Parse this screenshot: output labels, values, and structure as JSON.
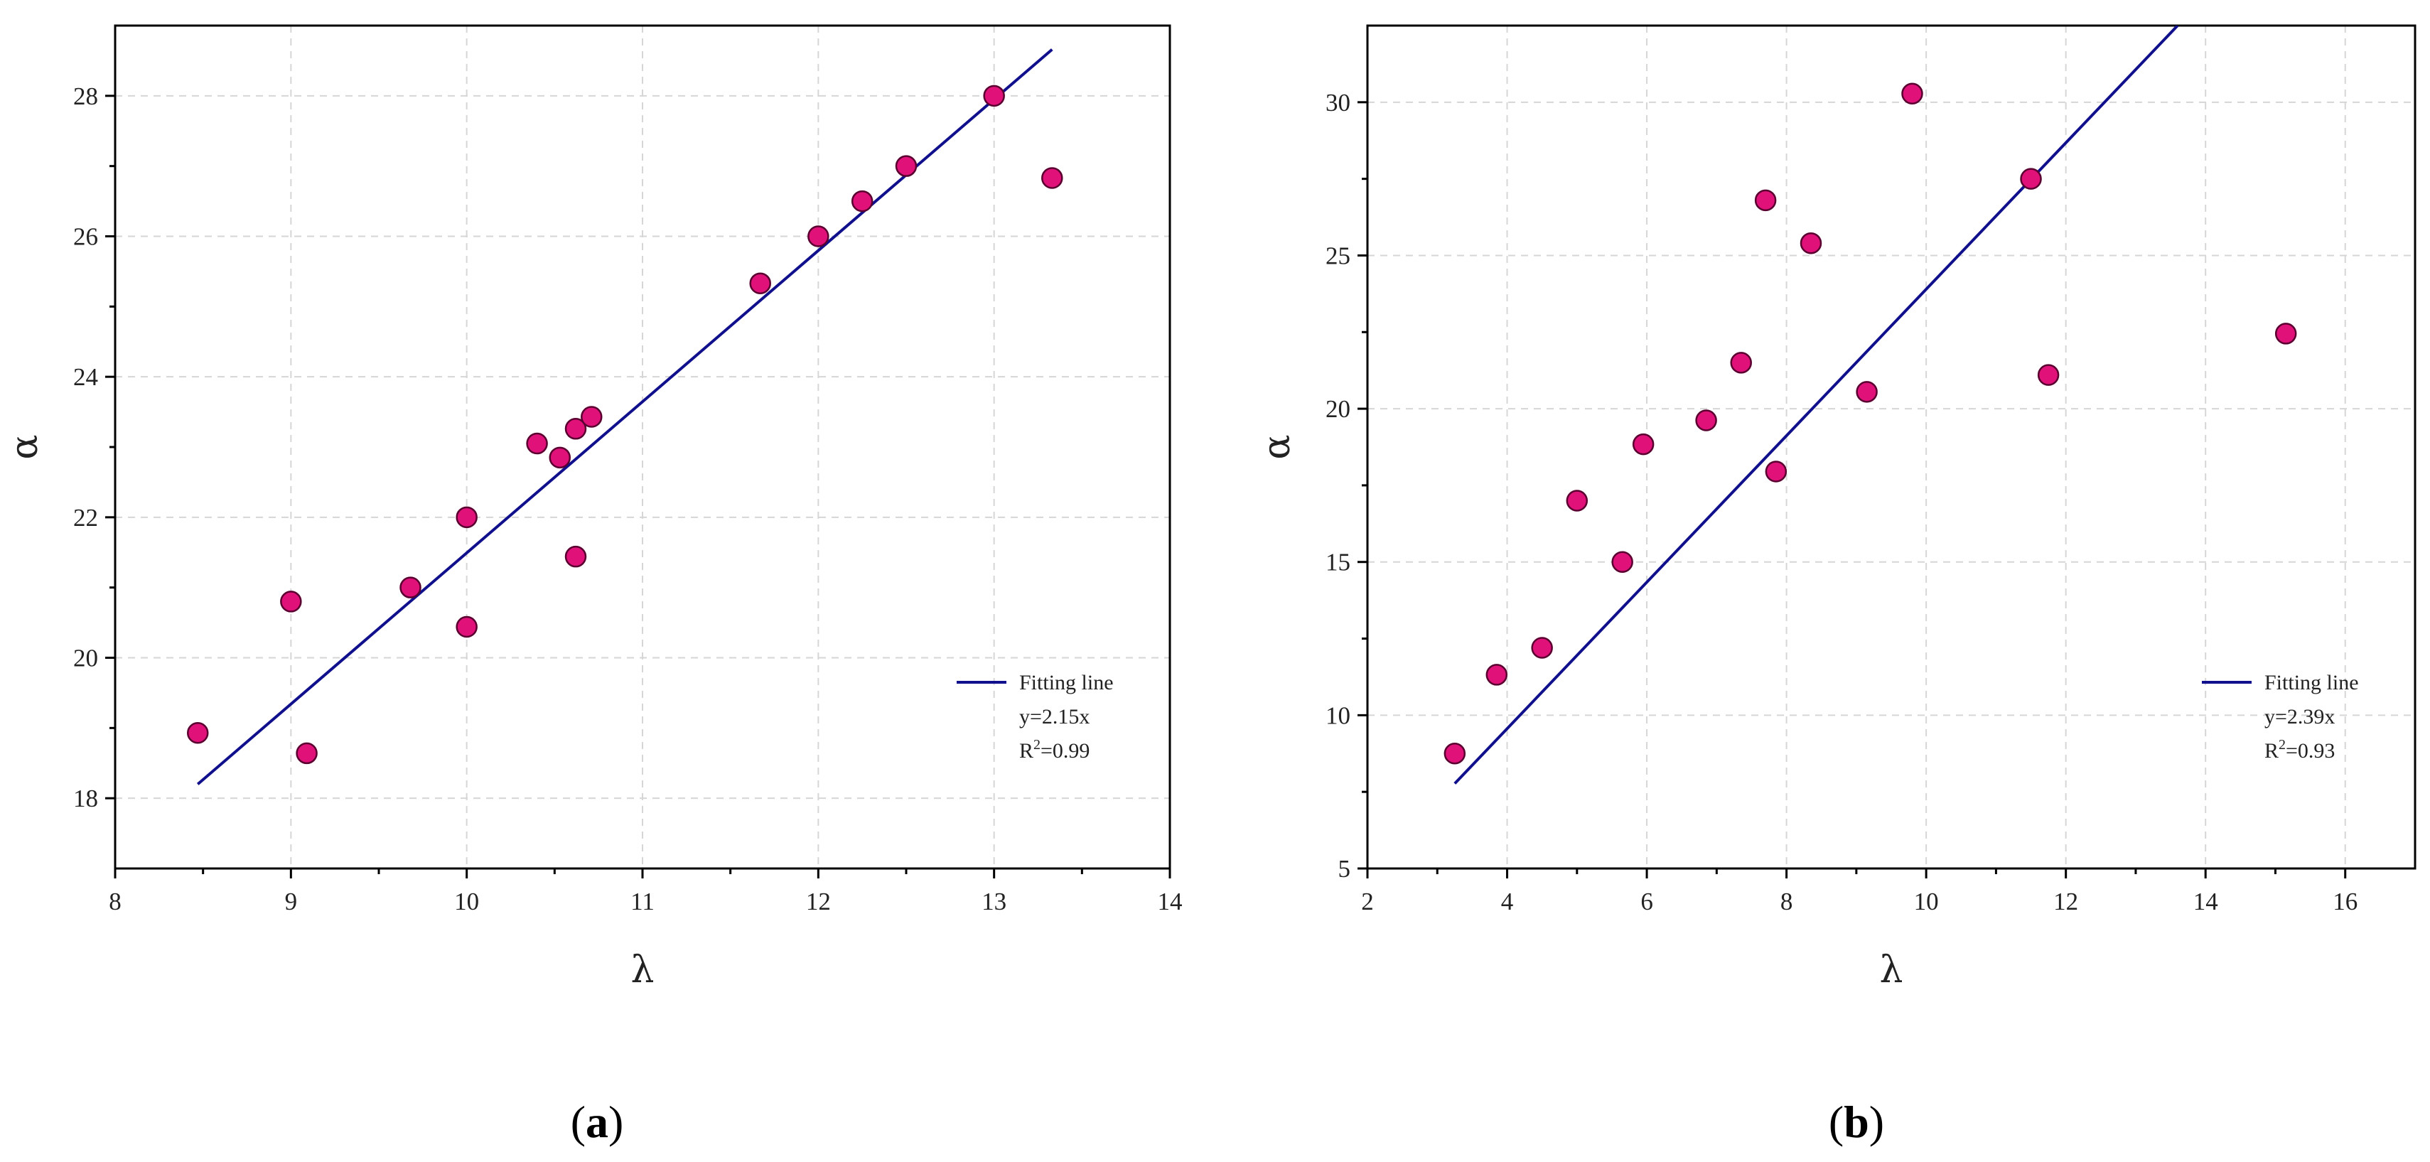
{
  "chart_data": [
    {
      "type": "scatter",
      "panel_label": "a",
      "xlabel": "λ",
      "ylabel": "α",
      "xlim": [
        8,
        14
      ],
      "ylim": [
        17,
        29
      ],
      "xticks": [
        8,
        9,
        10,
        11,
        12,
        13,
        14
      ],
      "yticks": [
        18,
        20,
        22,
        24,
        26,
        28
      ],
      "x_minor_step": 0.5,
      "y_minor_step": 1,
      "grid": true,
      "point_color": "#e0127a",
      "line_color": "#10108c",
      "series": [
        {
          "name": "data",
          "points": [
            [
              8.47,
              18.93
            ],
            [
              9.0,
              20.8
            ],
            [
              9.09,
              18.64
            ],
            [
              9.68,
              21.0
            ],
            [
              10.0,
              22.0
            ],
            [
              10.0,
              20.44
            ],
            [
              10.4,
              23.05
            ],
            [
              10.53,
              22.85
            ],
            [
              10.62,
              21.44
            ],
            [
              10.62,
              23.26
            ],
            [
              10.71,
              23.43
            ],
            [
              11.67,
              25.33
            ],
            [
              12.0,
              26.0
            ],
            [
              12.25,
              26.5
            ],
            [
              12.5,
              27.0
            ],
            [
              13.0,
              28.0
            ],
            [
              13.33,
              26.83
            ]
          ]
        },
        {
          "name": "Fitting line",
          "line": [
            [
              8.47,
              18.2
            ],
            [
              13.33,
              28.66
            ]
          ]
        }
      ],
      "legend": {
        "position": "bottom-right",
        "entry": "Fitting line",
        "equation": "y=2.15x",
        "r2_prefix": "R",
        "r2_sup": "2",
        "r2_value": "=0.99"
      }
    },
    {
      "type": "scatter",
      "panel_label": "b",
      "xlabel": "λ",
      "ylabel": "α",
      "xlim": [
        2,
        17
      ],
      "ylim": [
        5,
        32.5
      ],
      "xticks": [
        2,
        4,
        6,
        8,
        10,
        12,
        14,
        16
      ],
      "yticks": [
        5,
        10,
        15,
        20,
        25,
        30
      ],
      "x_minor_step": 1,
      "y_minor_step": 2.5,
      "grid": true,
      "point_color": "#e0127a",
      "line_color": "#10108c",
      "series": [
        {
          "name": "data",
          "points": [
            [
              3.25,
              8.75
            ],
            [
              3.85,
              11.32
            ],
            [
              4.5,
              12.2
            ],
            [
              5.0,
              17.0
            ],
            [
              5.65,
              15.0
            ],
            [
              5.95,
              18.84
            ],
            [
              6.85,
              19.62
            ],
            [
              7.35,
              21.5
            ],
            [
              7.7,
              26.8
            ],
            [
              7.85,
              17.95
            ],
            [
              8.35,
              25.4
            ],
            [
              9.15,
              20.55
            ],
            [
              9.8,
              30.28
            ],
            [
              11.5,
              27.5
            ],
            [
              11.75,
              21.1
            ],
            [
              15.15,
              22.45
            ]
          ]
        },
        {
          "name": "Fitting line",
          "line": [
            [
              3.25,
              7.77
            ],
            [
              13.6,
              32.5
            ]
          ]
        }
      ],
      "legend": {
        "position": "bottom-right",
        "entry": "Fitting line",
        "equation": "y=2.39x",
        "r2_prefix": "R",
        "r2_sup": "2",
        "r2_value": "=0.93"
      }
    }
  ]
}
